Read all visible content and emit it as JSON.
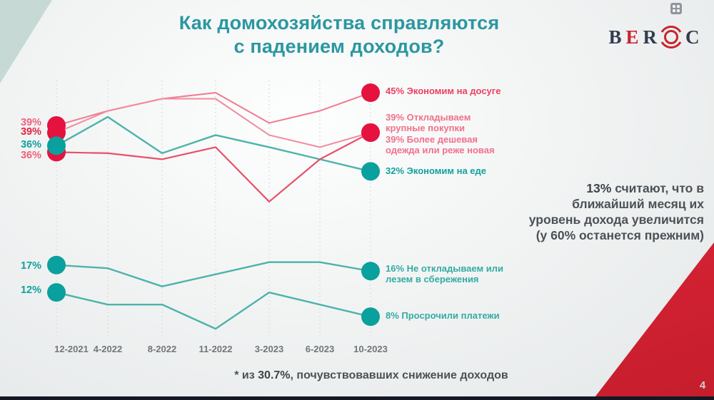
{
  "slide": {
    "title": "Как домохозяйства справляются\nс падением доходов?",
    "title_color": "#2b97a1",
    "page_number": "4",
    "footnote": {
      "prefix": "* из ",
      "bold": "30.7%",
      "suffix": ", почувствовавших снижение доходов"
    },
    "side_note": {
      "bold": "13%",
      "line1_rest": " считают, что в",
      "line2": "ближайший месяц их",
      "line3": "уровень дохода увеличится",
      "line4": "(у 60% останется прежним)"
    }
  },
  "logo": {
    "letter_b": "B",
    "letter_e": "E",
    "letter_r": "R",
    "letter_c": "C",
    "dark_color": "#343c4f",
    "red_color": "#c8242e"
  },
  "chart_data": {
    "type": "line",
    "title": "Как домохозяйства справляются с падением доходов?",
    "value_unit": "%",
    "grid": "vertical-dotted",
    "categories": [
      "12-2021",
      "4-2022",
      "8-2022",
      "11-2022",
      "3-2023",
      "6-2023",
      "10-2023"
    ],
    "series": [
      {
        "name": "Экономим на досуге",
        "values": [
          39,
          42,
          44,
          45,
          40,
          42,
          45
        ],
        "line_color": "#f07b90",
        "marker_color": "#e5123f",
        "start_label": "39%",
        "start_label_color": "#e62346",
        "end_label": "45% Экономим на досуге",
        "end_label_color": "#ec3f61"
      },
      {
        "name": "Откладываем крупные покупки",
        "values": [
          39,
          42,
          44,
          44,
          38,
          36,
          39
        ],
        "line_color": "#f28b9d",
        "marker_color": "#e5123f",
        "start_label": "39%",
        "start_label_color": "#f0607d",
        "end_label": "39% Откладываем\nкрупные покупки",
        "end_label_color": "#f1718b"
      },
      {
        "name": "Более дешевая одежда или реже новая",
        "values": [
          36,
          35,
          34,
          36,
          27,
          34,
          39
        ],
        "line_color": "#e9506b",
        "marker_color": "#e5123f",
        "start_label": "36%",
        "start_label_color": "#f0607d",
        "end_label": "39% Более дешевая\nодежда или реже новая",
        "end_label_color": "#f1718b"
      },
      {
        "name": "Экономим на еде",
        "values": [
          36,
          41,
          35,
          38,
          36,
          34,
          32
        ],
        "line_color": "#4db3aa",
        "marker_color": "#0aa09d",
        "start_label": "36%",
        "start_label_color": "#12a19d",
        "end_label": "32% Экономим на еде",
        "end_label_color": "#12a19d"
      },
      {
        "name": "Не откладываем или лезем в сбережения",
        "values": [
          17,
          16,
          13,
          15,
          17,
          17,
          16
        ],
        "line_color": "#4db3aa",
        "marker_color": "#0aa09d",
        "start_label": "17%",
        "start_label_color": "#12a19d",
        "end_label": "16% Не откладываем или\nлезем в сбережения",
        "end_label_color": "#35aba3"
      },
      {
        "name": "Просрочили платежи",
        "values": [
          12,
          10,
          10,
          6,
          12,
          10,
          8
        ],
        "line_color": "#4db3aa",
        "marker_color": "#0aa09d",
        "start_label": "12%",
        "start_label_color": "#12a19d",
        "end_label": "8% Просрочили платежи",
        "end_label_color": "#35aba3"
      }
    ]
  }
}
